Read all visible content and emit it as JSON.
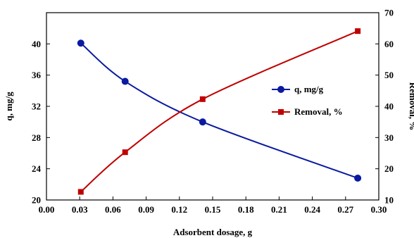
{
  "chart_data": {
    "type": "line",
    "title": "",
    "xlabel": "Adsorbent dosage, g",
    "ylabel_left": "q, mg/g",
    "ylabel_right": "Removal, %",
    "xlim": [
      0.0,
      0.3
    ],
    "ylim_left": [
      20,
      44
    ],
    "ylim_right": [
      10,
      70
    ],
    "x_ticks": [
      "0.00",
      "0.03",
      "0.06",
      "0.09",
      "0.12",
      "0.15",
      "0.18",
      "0.21",
      "0.24",
      "0.27",
      "0.30"
    ],
    "y_left_ticks": [
      "20",
      "24",
      "28",
      "32",
      "36",
      "40"
    ],
    "y_right_ticks": [
      "10",
      "20",
      "30",
      "40",
      "50",
      "60",
      "70"
    ],
    "grid": false,
    "legend_position": "right",
    "series": [
      {
        "name": "q, mg/g",
        "axis": "left",
        "color": "#0a1aa0",
        "marker": "circle",
        "x": [
          0.031,
          0.071,
          0.141,
          0.281
        ],
        "y": [
          40.1,
          35.2,
          30.0,
          22.8
        ]
      },
      {
        "name": "Removal, %",
        "axis": "right",
        "color": "#c00000",
        "marker": "square",
        "x": [
          0.031,
          0.071,
          0.141,
          0.281
        ],
        "y": [
          12.6,
          25.3,
          42.3,
          64.1
        ]
      }
    ]
  }
}
